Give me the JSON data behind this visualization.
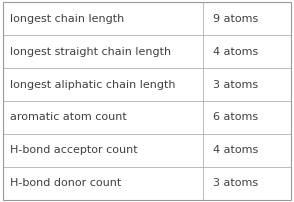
{
  "rows": [
    {
      "label": "longest chain length",
      "value": "9 atoms"
    },
    {
      "label": "longest straight chain length",
      "value": "4 atoms"
    },
    {
      "label": "longest aliphatic chain length",
      "value": "3 atoms"
    },
    {
      "label": "aromatic atom count",
      "value": "6 atoms"
    },
    {
      "label": "H-bond acceptor count",
      "value": "4 atoms"
    },
    {
      "label": "H-bond donor count",
      "value": "3 atoms"
    }
  ],
  "col_split": 0.695,
  "bg_color": "#ffffff",
  "border_color": "#b0b0b0",
  "text_color": "#404040",
  "font_size": 8.0,
  "outer_border_color": "#999999",
  "fig_width": 2.94,
  "fig_height": 2.02,
  "dpi": 100
}
